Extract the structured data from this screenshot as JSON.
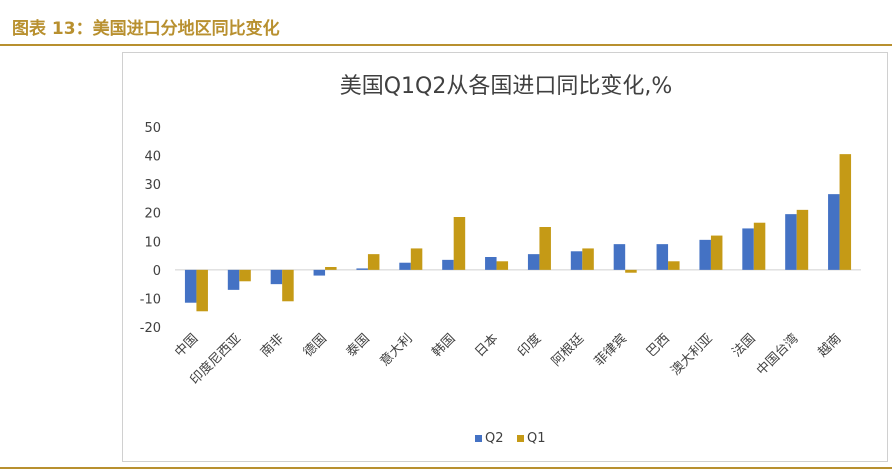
{
  "caption": "图表 13：美国进口分地区同比变化",
  "chart_data": {
    "type": "bar",
    "title": "美国Q1Q2从各国进口同比变化,%",
    "xlabel": "",
    "ylabel": "",
    "ylim": [
      -20,
      50
    ],
    "yticks": [
      -20,
      -10,
      0,
      10,
      20,
      30,
      40,
      50
    ],
    "categories": [
      "中国",
      "印度尼西亚",
      "南非",
      "德国",
      "泰国",
      "意大利",
      "韩国",
      "日本",
      "印度",
      "阿根廷",
      "菲律宾",
      "巴西",
      "澳大利亚",
      "法国",
      "中国台湾",
      "越南"
    ],
    "series": [
      {
        "name": "Q2",
        "color": "#4472c4",
        "values": [
          -11.5,
          -7,
          -5,
          -2,
          0.5,
          2.5,
          3.5,
          4.5,
          5.5,
          6.5,
          9,
          9,
          10.5,
          14.5,
          19.5,
          26.5
        ]
      },
      {
        "name": "Q1",
        "color": "#c59a16",
        "values": [
          -14.5,
          -4,
          -11,
          1,
          5.5,
          7.5,
          18.5,
          3,
          15,
          7.5,
          -1,
          3,
          12,
          16.5,
          21,
          40.5
        ]
      }
    ],
    "legend": "bottom",
    "grid": false
  }
}
